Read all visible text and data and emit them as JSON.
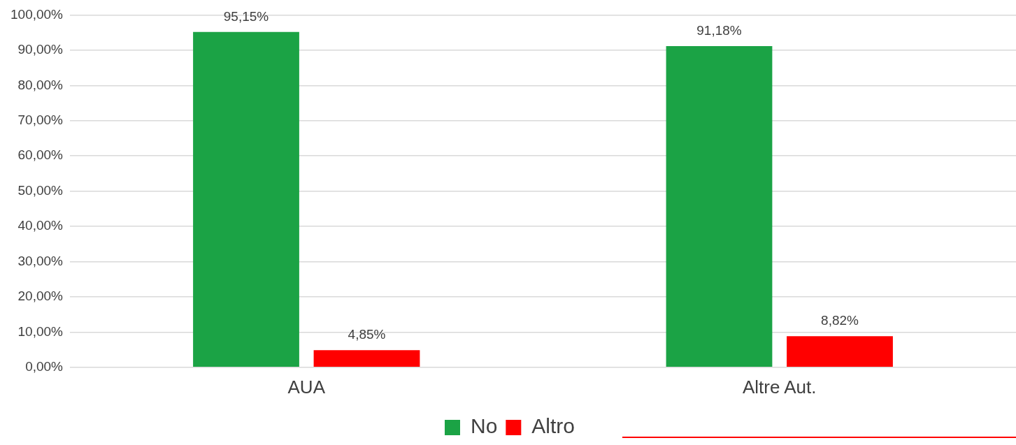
{
  "chart_data": {
    "type": "bar",
    "categories": [
      "AUA",
      "Altre Aut."
    ],
    "series": [
      {
        "name": "No",
        "color": "#1ba345",
        "values": [
          95.15,
          91.18
        ],
        "value_labels": [
          "95,15%",
          "91,18%"
        ]
      },
      {
        "name": "Altro",
        "color": "#ff0000",
        "values": [
          4.85,
          8.82
        ],
        "value_labels": [
          "4,85%",
          "8,82%"
        ]
      }
    ],
    "ylim": [
      0,
      100
    ],
    "yticks": [
      {
        "value": 0,
        "label": "0,00%"
      },
      {
        "value": 10,
        "label": "10,00%"
      },
      {
        "value": 20,
        "label": "20,00%"
      },
      {
        "value": 30,
        "label": "30,00%"
      },
      {
        "value": 40,
        "label": "40,00%"
      },
      {
        "value": 50,
        "label": "50,00%"
      },
      {
        "value": 60,
        "label": "60,00%"
      },
      {
        "value": 70,
        "label": "70,00%"
      },
      {
        "value": 80,
        "label": "80,00%"
      },
      {
        "value": 90,
        "label": "90,00%"
      },
      {
        "value": 100,
        "label": "100,00%"
      }
    ],
    "grid": "y",
    "legend": "bottom"
  }
}
